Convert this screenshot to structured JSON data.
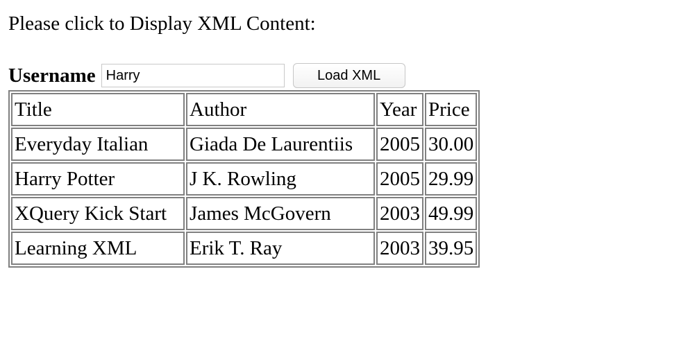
{
  "prompt": "Please click to Display XML Content:",
  "form": {
    "username_label": "Username",
    "username_value": "Harry",
    "load_button_label": "Load XML"
  },
  "table": {
    "headers": [
      "Title",
      "Author",
      "Year",
      "Price"
    ],
    "rows": [
      [
        "Everyday Italian",
        "Giada De Laurentiis",
        "2005",
        "30.00"
      ],
      [
        "Harry Potter",
        "J K. Rowling",
        "2005",
        "29.99"
      ],
      [
        "XQuery Kick Start",
        "James McGovern",
        "2003",
        "49.99"
      ],
      [
        "Learning XML",
        "Erik T. Ray",
        "2003",
        "39.95"
      ]
    ]
  }
}
